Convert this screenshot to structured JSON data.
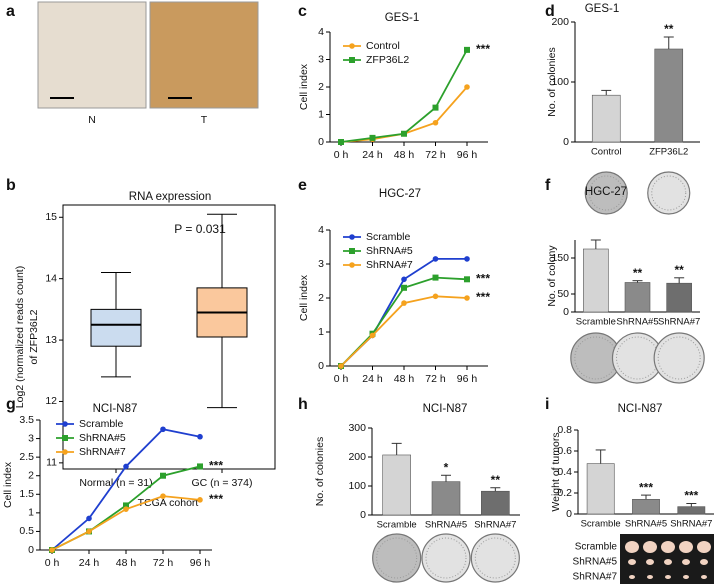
{
  "chart_data": [
    {
      "type": "image",
      "label": "a",
      "categories": [
        "N",
        "T"
      ]
    },
    {
      "type": "box",
      "label": "b",
      "title": "RNA expression",
      "ylabel": [
        "Log2 (normalized reads count)",
        "of ZFP36L2"
      ],
      "xlabel": "TCGA cohort",
      "annotation": "P = 0.031",
      "categories": [
        "Normal (n = 31)",
        "GC (n = 374)"
      ],
      "boxes": [
        {
          "min": 12.4,
          "q1": 12.9,
          "median": 13.25,
          "q3": 13.5,
          "max": 14.1
        },
        {
          "min": 11.9,
          "q1": 13.05,
          "median": 13.45,
          "q3": 13.85,
          "max": 15.05
        }
      ],
      "ylim": [
        10.9,
        15.2
      ],
      "yticks": [
        11,
        12,
        13,
        14,
        15
      ]
    },
    {
      "type": "line",
      "label": "c",
      "title": "GES-1",
      "ylabel": "Cell index",
      "categories": [
        "0 h",
        "24 h",
        "48 h",
        "72 h",
        "96 h"
      ],
      "legend": "upper left",
      "series": [
        {
          "name": "Control",
          "color": "#f5a21e",
          "marker": "circle",
          "values": [
            0,
            0.1,
            0.3,
            0.7,
            2.0
          ]
        },
        {
          "name": "ZFP36L2",
          "color": "#2ca02c",
          "marker": "square",
          "values": [
            0,
            0.15,
            0.3,
            1.25,
            3.35
          ],
          "significance": "***"
        }
      ],
      "ylim": [
        0,
        4
      ],
      "yticks": [
        0,
        1,
        2,
        3,
        4
      ]
    },
    {
      "type": "bar",
      "label": "d",
      "title": "GES-1",
      "ylabel": "No. of colonies",
      "categories": [
        "Control",
        "ZFP36L2"
      ],
      "values": [
        78,
        155
      ],
      "errors": [
        8,
        20
      ],
      "colors": [
        "#d4d4d4",
        "#8a8a8a"
      ],
      "significance": [
        null,
        "**"
      ],
      "ylim": [
        0,
        200
      ],
      "yticks": [
        0,
        100,
        200
      ]
    },
    {
      "type": "line",
      "label": "e",
      "title": "HGC-27",
      "ylabel": "Cell index",
      "categories": [
        "0 h",
        "24 h",
        "48 h",
        "72 h",
        "96 h"
      ],
      "legend": "upper left",
      "series": [
        {
          "name": "Scramble",
          "color": "#1f3fcf",
          "marker": "circle",
          "values": [
            0,
            0.9,
            2.55,
            3.15,
            3.15
          ]
        },
        {
          "name": "ShRNA#5",
          "color": "#2ca02c",
          "marker": "square",
          "values": [
            0,
            0.95,
            2.3,
            2.6,
            2.55
          ],
          "significance": "***"
        },
        {
          "name": "ShRNA#7",
          "color": "#f5a21e",
          "marker": "circle",
          "values": [
            0,
            0.9,
            1.85,
            2.05,
            2.0
          ],
          "significance": "***"
        }
      ],
      "ylim": [
        0,
        4
      ],
      "yticks": [
        0,
        1,
        2,
        3,
        4
      ]
    },
    {
      "type": "bar",
      "label": "f",
      "title": "HGC-27",
      "ylabel": "No. of colony",
      "categories": [
        "Scramble",
        "ShRNA#5",
        "ShRNA#7"
      ],
      "values": [
        175,
        82,
        80
      ],
      "errors": [
        25,
        5,
        15
      ],
      "colors": [
        "#d4d4d4",
        "#8a8a8a",
        "#6e6e6e"
      ],
      "significance": [
        null,
        "**",
        "**"
      ],
      "ylim": [
        0,
        200
      ],
      "yticks": [
        0,
        50,
        150
      ]
    },
    {
      "type": "line",
      "label": "g",
      "title": "NCI-N87",
      "ylabel": "Cell index",
      "categories": [
        "0 h",
        "24 h",
        "48 h",
        "72 h",
        "96 h"
      ],
      "legend": "upper left",
      "series": [
        {
          "name": "Scramble",
          "color": "#1f3fcf",
          "marker": "circle",
          "values": [
            0,
            0.85,
            2.25,
            3.25,
            3.05
          ]
        },
        {
          "name": "ShRNA#5",
          "color": "#2ca02c",
          "marker": "square",
          "values": [
            0,
            0.5,
            1.2,
            2.0,
            2.25
          ],
          "significance": "***"
        },
        {
          "name": "ShRNA#7",
          "color": "#f5a21e",
          "marker": "circle",
          "values": [
            0,
            0.5,
            1.1,
            1.45,
            1.35
          ],
          "significance": "***"
        }
      ],
      "ylim": [
        0,
        3.5
      ],
      "yticks": [
        0,
        0.5,
        1,
        1.5,
        2,
        2.5,
        3,
        3.5
      ]
    },
    {
      "type": "bar",
      "label": "h",
      "title": "NCI-N87",
      "ylabel": "No. of colonies",
      "categories": [
        "Scramble",
        "ShRNA#5",
        "ShRNA#7"
      ],
      "values": [
        207,
        115,
        82
      ],
      "errors": [
        40,
        22,
        12
      ],
      "colors": [
        "#d4d4d4",
        "#8a8a8a",
        "#6e6e6e"
      ],
      "significance": [
        null,
        "*",
        "**"
      ],
      "ylim": [
        0,
        300
      ],
      "yticks": [
        0,
        100,
        200,
        300
      ]
    },
    {
      "type": "bar",
      "label": "i",
      "title": "NCI-N87",
      "ylabel": "Weight of tumors",
      "categories": [
        "Scramble",
        "ShRNA#5",
        "ShRNA#7"
      ],
      "values": [
        0.48,
        0.14,
        0.07
      ],
      "errors": [
        0.13,
        0.04,
        0.03
      ],
      "colors": [
        "#d4d4d4",
        "#8a8a8a",
        "#6e6e6e"
      ],
      "significance": [
        null,
        "***",
        "***"
      ],
      "ylim": [
        0,
        0.8
      ],
      "yticks": [
        0,
        0.2,
        0.4,
        0.6,
        0.8
      ],
      "tumor_rows": [
        "Scramble",
        "ShRNA#5",
        "ShRNA#7"
      ]
    }
  ]
}
